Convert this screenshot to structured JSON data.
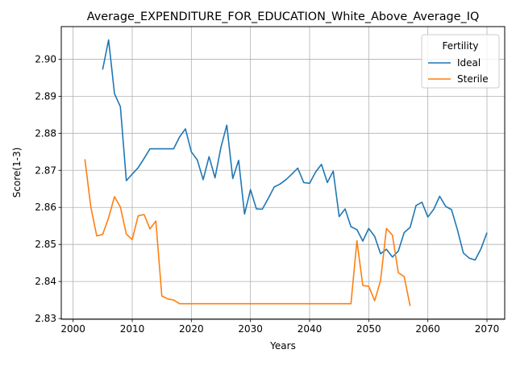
{
  "chart_data": {
    "type": "line",
    "title": "Average_EXPENDITURE_FOR_EDUCATION_White_Above_Average_IQ",
    "xlabel": "Years",
    "ylabel": "Score(1-3)",
    "xlim": [
      1998,
      2073
    ],
    "ylim": [
      2.8298,
      2.9088
    ],
    "xticks": [
      2000,
      2010,
      2020,
      2030,
      2040,
      2050,
      2060,
      2070
    ],
    "yticks": [
      2.83,
      2.84,
      2.85,
      2.86,
      2.87,
      2.88,
      2.89,
      2.9
    ],
    "ytick_labels": [
      "2.83",
      "2.84",
      "2.85",
      "2.86",
      "2.87",
      "2.88",
      "2.89",
      "2.90"
    ],
    "grid": true,
    "legend": {
      "title": "Fertility",
      "position": "top-right"
    },
    "series": [
      {
        "name": "Ideal",
        "color": "#1f77b4",
        "x": [
          2005,
          2006,
          2007,
          2008,
          2009,
          2010,
          2011,
          2012,
          2013,
          2014,
          2015,
          2016,
          2017,
          2018,
          2019,
          2020,
          2021,
          2022,
          2023,
          2024,
          2025,
          2026,
          2027,
          2028,
          2029,
          2030,
          2031,
          2032,
          2033,
          2034,
          2035,
          2036,
          2037,
          2038,
          2039,
          2040,
          2041,
          2042,
          2043,
          2044,
          2045,
          2046,
          2047,
          2048,
          2049,
          2050,
          2051,
          2052,
          2053,
          2054,
          2055,
          2056,
          2057,
          2058,
          2059,
          2060,
          2061,
          2062,
          2063,
          2064,
          2065,
          2066,
          2067,
          2068,
          2069,
          2070
        ],
        "y": [
          2.8972,
          2.9052,
          2.8907,
          2.8872,
          2.8672,
          2.869,
          2.8707,
          2.8732,
          2.8758,
          2.8758,
          2.8758,
          2.8758,
          2.8758,
          2.879,
          2.8812,
          2.875,
          2.8728,
          2.8675,
          2.8737,
          2.868,
          2.8762,
          2.8822,
          2.8678,
          2.8727,
          2.8582,
          2.8648,
          2.8596,
          2.8595,
          2.8624,
          2.8655,
          2.8663,
          2.8675,
          2.869,
          2.8706,
          2.8667,
          2.8665,
          2.8695,
          2.8716,
          2.8667,
          2.8698,
          2.8575,
          2.8596,
          2.8548,
          2.854,
          2.8509,
          2.8543,
          2.8522,
          2.8475,
          2.8487,
          2.8466,
          2.8482,
          2.8532,
          2.8546,
          2.8605,
          2.8614,
          2.8574,
          2.8595,
          2.863,
          2.8603,
          2.8594,
          2.854,
          2.8477,
          2.8463,
          2.8458,
          2.8489,
          2.8532
        ]
      },
      {
        "name": "Sterile",
        "color": "#ff7f0e",
        "x": [
          2002,
          2003,
          2004,
          2005,
          2006,
          2007,
          2008,
          2009,
          2010,
          2011,
          2012,
          2013,
          2014,
          2015,
          2016,
          2017,
          2018,
          2019,
          2020,
          2021,
          2022,
          2023,
          2024,
          2025,
          2026,
          2027,
          2028,
          2029,
          2030,
          2031,
          2032,
          2033,
          2034,
          2035,
          2036,
          2037,
          2038,
          2039,
          2040,
          2041,
          2042,
          2043,
          2044,
          2045,
          2046,
          2047,
          2048,
          2049,
          2050,
          2051,
          2052,
          2053,
          2054,
          2055,
          2056,
          2057
        ],
        "y": [
          2.873,
          2.86,
          2.8523,
          2.8527,
          2.8572,
          2.8629,
          2.8601,
          2.8528,
          2.8513,
          2.8577,
          2.8581,
          2.8542,
          2.8563,
          2.8361,
          2.8353,
          2.835,
          2.834,
          2.834,
          2.834,
          2.834,
          2.834,
          2.834,
          2.834,
          2.834,
          2.834,
          2.834,
          2.834,
          2.834,
          2.834,
          2.834,
          2.834,
          2.834,
          2.834,
          2.834,
          2.834,
          2.834,
          2.834,
          2.834,
          2.834,
          2.834,
          2.834,
          2.834,
          2.834,
          2.834,
          2.834,
          2.834,
          2.851,
          2.8389,
          2.8387,
          2.8348,
          2.8402,
          2.8543,
          2.8525,
          2.8424,
          2.8413,
          2.8334
        ]
      }
    ]
  }
}
